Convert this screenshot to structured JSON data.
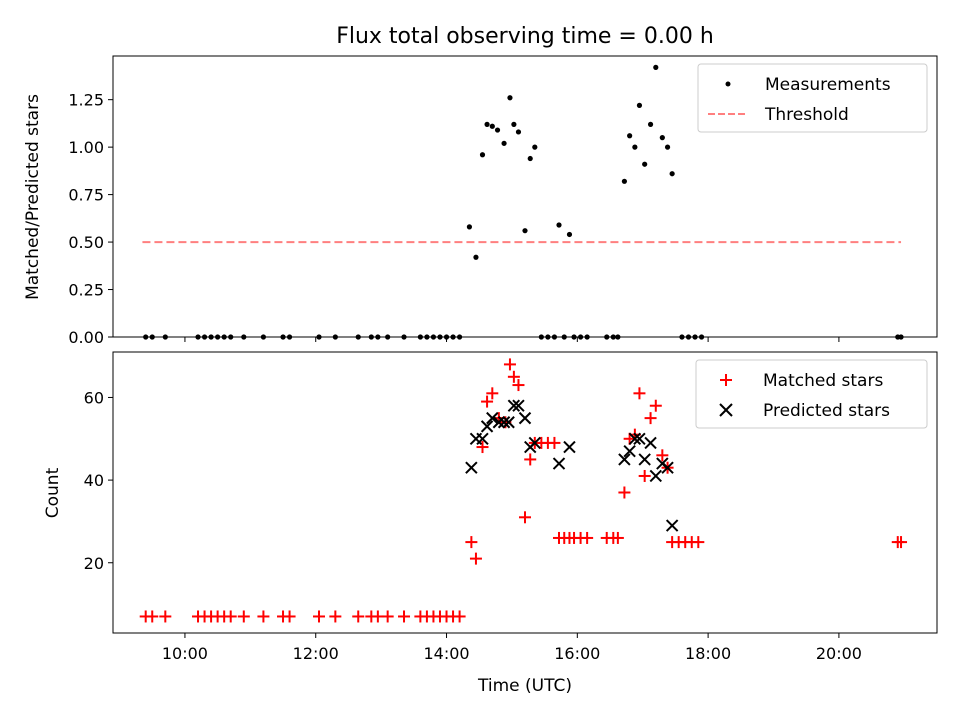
{
  "chart_data": [
    {
      "type": "scatter",
      "title": "Flux total observing time = 0.00 h",
      "xlabel": "",
      "ylabel": "Matched/Predicted stars",
      "xlim": [
        8.9,
        21.5
      ],
      "ylim": [
        0,
        1.48
      ],
      "yticks": [
        0.0,
        0.25,
        0.5,
        0.75,
        1.0,
        1.25
      ],
      "ytick_labels": [
        "0.00",
        "0.25",
        "0.50",
        "0.75",
        "1.00",
        "1.25"
      ],
      "xticks": [
        10,
        12,
        14,
        16,
        18,
        20
      ],
      "legend_position": "top-right",
      "series": [
        {
          "name": "Measurements",
          "marker": "dot",
          "color": "#000000",
          "x": [
            9.4,
            9.5,
            9.7,
            10.2,
            10.3,
            10.4,
            10.5,
            10.6,
            10.7,
            10.9,
            11.2,
            11.5,
            11.6,
            12.05,
            12.3,
            12.65,
            12.85,
            12.95,
            13.1,
            13.35,
            13.6,
            13.7,
            13.8,
            13.9,
            14.0,
            14.1,
            14.2,
            14.35,
            14.45,
            14.55,
            14.62,
            14.7,
            14.78,
            14.88,
            14.97,
            15.03,
            15.1,
            15.2,
            15.28,
            15.35,
            15.45,
            15.55,
            15.65,
            15.72,
            15.8,
            15.88,
            15.95,
            16.05,
            16.15,
            16.45,
            16.55,
            16.62,
            16.72,
            16.8,
            16.88,
            16.95,
            17.03,
            17.12,
            17.2,
            17.3,
            17.38,
            17.45,
            17.6,
            17.7,
            17.8,
            17.9,
            20.9,
            20.95
          ],
          "y": [
            0,
            0,
            0,
            0,
            0,
            0,
            0,
            0,
            0,
            0,
            0,
            0,
            0,
            0,
            0,
            0,
            0,
            0,
            0,
            0,
            0,
            0,
            0,
            0,
            0,
            0,
            0,
            0.58,
            0.42,
            0.96,
            1.12,
            1.11,
            1.09,
            1.02,
            1.26,
            1.12,
            1.08,
            0.56,
            0.94,
            1.0,
            0,
            0,
            0,
            0.59,
            0,
            0.54,
            0,
            0,
            0,
            0,
            0,
            0,
            0.82,
            1.06,
            1.0,
            1.22,
            0.91,
            1.12,
            1.42,
            1.05,
            1.0,
            0.86,
            0,
            0,
            0,
            0,
            0,
            0
          ]
        },
        {
          "name": "Threshold",
          "style": "dashed",
          "color": "#ff7f7f",
          "x": [
            9.35,
            20.95
          ],
          "y": [
            0.5,
            0.5
          ]
        }
      ]
    },
    {
      "type": "scatter",
      "title": "",
      "xlabel": "Time (UTC)",
      "ylabel": "Count",
      "xlim": [
        8.9,
        21.5
      ],
      "ylim": [
        3,
        71
      ],
      "yticks": [
        20,
        40,
        60
      ],
      "ytick_labels": [
        "20",
        "40",
        "60"
      ],
      "xticks": [
        10,
        12,
        14,
        16,
        18,
        20
      ],
      "xtick_labels": [
        "10:00",
        "12:00",
        "14:00",
        "16:00",
        "18:00",
        "20:00"
      ],
      "legend_position": "top-right",
      "series": [
        {
          "name": "Matched stars",
          "marker": "plus",
          "color": "#ff0000",
          "x": [
            9.4,
            9.5,
            9.7,
            10.2,
            10.3,
            10.4,
            10.5,
            10.6,
            10.7,
            10.9,
            11.2,
            11.5,
            11.6,
            12.05,
            12.3,
            12.65,
            12.85,
            12.95,
            13.1,
            13.35,
            13.6,
            13.7,
            13.8,
            13.9,
            14.0,
            14.1,
            14.2,
            14.38,
            14.45,
            14.55,
            14.62,
            14.7,
            14.8,
            14.9,
            14.97,
            15.03,
            15.1,
            15.2,
            15.28,
            15.35,
            15.45,
            15.55,
            15.65,
            15.72,
            15.8,
            15.88,
            15.95,
            16.05,
            16.15,
            16.45,
            16.55,
            16.62,
            16.72,
            16.8,
            16.88,
            16.95,
            17.03,
            17.12,
            17.2,
            17.3,
            17.38,
            17.45,
            17.55,
            17.65,
            17.75,
            17.85,
            20.9,
            20.95
          ],
          "y": [
            7,
            7,
            7,
            7,
            7,
            7,
            7,
            7,
            7,
            7,
            7,
            7,
            7,
            7,
            7,
            7,
            7,
            7,
            7,
            7,
            7,
            7,
            7,
            7,
            7,
            7,
            7,
            25,
            21,
            48,
            59,
            61,
            55,
            54,
            68,
            65,
            63,
            31,
            45,
            49,
            49,
            49,
            49,
            26,
            26,
            26,
            26,
            26,
            26,
            26,
            26,
            26,
            37,
            50,
            51,
            61,
            41,
            55,
            58,
            46,
            43,
            25,
            25,
            25,
            25,
            25,
            25,
            25
          ]
        },
        {
          "name": "Predicted stars",
          "marker": "x",
          "color": "#000000",
          "x": [
            14.38,
            14.45,
            14.55,
            14.62,
            14.7,
            14.8,
            14.88,
            14.95,
            15.03,
            15.1,
            15.2,
            15.28,
            15.35,
            15.72,
            15.88,
            16.72,
            16.8,
            16.88,
            16.95,
            17.03,
            17.12,
            17.2,
            17.3,
            17.38,
            17.45
          ],
          "y": [
            43,
            50,
            50,
            53,
            55,
            54,
            54,
            54,
            58,
            58,
            55,
            48,
            49,
            44,
            48,
            45,
            47,
            50,
            50,
            45,
            49,
            41,
            44,
            43,
            29
          ]
        }
      ]
    }
  ]
}
